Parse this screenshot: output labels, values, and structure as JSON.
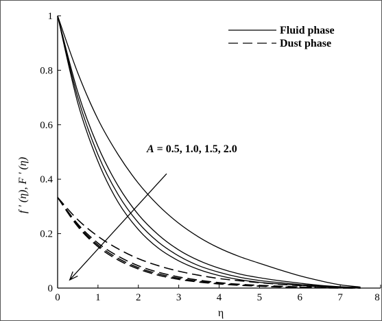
{
  "chart_data": {
    "type": "line",
    "title": "",
    "xlabel": "η",
    "ylabel": "f ' (η), F ' (η)",
    "xlim": [
      0,
      8
    ],
    "ylim": [
      0,
      1
    ],
    "xticks": [
      "0",
      "1",
      "2",
      "3",
      "4",
      "5",
      "6",
      "7",
      "8"
    ],
    "yticks": [
      "0",
      "0.2",
      "0.4",
      "0.6",
      "0.8",
      "1"
    ],
    "grid": false,
    "legend": {
      "position": "top-right",
      "entries": [
        {
          "label": "Fluid phase",
          "style": "solid"
        },
        {
          "label": "Dust phase",
          "style": "dashed"
        }
      ]
    },
    "annotation": {
      "italic": "A",
      "text": " = 0.5, 1.0, 1.5, 2.0",
      "arrow_from": [
        2.7,
        0.42
      ],
      "arrow_to": [
        0.3,
        0.03
      ]
    },
    "series": [
      {
        "style": "solid",
        "x": [
          0,
          0.5,
          1,
          1.5,
          2,
          2.5,
          3,
          3.5,
          4,
          4.5,
          5,
          5.5,
          6,
          6.5,
          7,
          7.5
        ],
        "y": [
          1.0,
          0.79,
          0.62,
          0.49,
          0.385,
          0.303,
          0.238,
          0.187,
          0.147,
          0.116,
          0.091,
          0.067,
          0.045,
          0.027,
          0.012,
          0.004
        ]
      },
      {
        "style": "solid",
        "x": [
          0,
          0.5,
          1,
          1.5,
          2,
          2.5,
          3,
          3.5,
          4,
          4.5,
          5,
          5.5,
          6,
          6.5,
          7,
          7.5
        ],
        "y": [
          1.0,
          0.72,
          0.52,
          0.375,
          0.27,
          0.195,
          0.14,
          0.101,
          0.073,
          0.052,
          0.038,
          0.027,
          0.018,
          0.01,
          0.005,
          0.002
        ]
      },
      {
        "style": "solid",
        "x": [
          0,
          0.5,
          1,
          1.5,
          2,
          2.5,
          3,
          3.5,
          4,
          4.5,
          5,
          5.5,
          6,
          6.5,
          7,
          7.5
        ],
        "y": [
          1.0,
          0.7,
          0.49,
          0.343,
          0.24,
          0.168,
          0.118,
          0.082,
          0.058,
          0.04,
          0.028,
          0.02,
          0.013,
          0.008,
          0.004,
          0.002
        ]
      },
      {
        "style": "solid",
        "x": [
          0,
          0.5,
          1,
          1.5,
          2,
          2.5,
          3,
          3.5,
          4,
          4.5,
          5,
          5.5,
          6,
          6.5,
          7,
          7.5
        ],
        "y": [
          1.0,
          0.68,
          0.465,
          0.315,
          0.215,
          0.146,
          0.1,
          0.068,
          0.046,
          0.031,
          0.021,
          0.015,
          0.01,
          0.006,
          0.003,
          0.001
        ]
      },
      {
        "style": "dashed",
        "x": [
          0,
          0.5,
          1,
          1.5,
          2,
          2.5,
          3,
          3.5,
          4,
          4.5,
          5,
          5.5,
          6,
          6.5,
          7,
          7.5
        ],
        "y": [
          0.333,
          0.251,
          0.19,
          0.144,
          0.108,
          0.082,
          0.062,
          0.047,
          0.035,
          0.027,
          0.02,
          0.014,
          0.009,
          0.005,
          0.002,
          0.001
        ]
      },
      {
        "style": "dashed",
        "x": [
          0,
          0.5,
          1,
          1.5,
          2,
          2.5,
          3,
          3.5,
          4,
          4.5,
          5,
          5.5,
          6,
          6.5,
          7,
          7.5
        ],
        "y": [
          0.333,
          0.235,
          0.165,
          0.117,
          0.082,
          0.058,
          0.041,
          0.029,
          0.02,
          0.014,
          0.01,
          0.007,
          0.004,
          0.002,
          0.001,
          0.0
        ]
      },
      {
        "style": "dashed",
        "x": [
          0,
          0.5,
          1,
          1.5,
          2,
          2.5,
          3,
          3.5,
          4,
          4.5,
          5,
          5.5,
          6,
          6.5,
          7,
          7.5
        ],
        "y": [
          0.333,
          0.23,
          0.158,
          0.109,
          0.075,
          0.052,
          0.036,
          0.025,
          0.017,
          0.012,
          0.008,
          0.005,
          0.003,
          0.002,
          0.001,
          0.0
        ]
      },
      {
        "style": "dashed",
        "x": [
          0,
          0.5,
          1,
          1.5,
          2,
          2.5,
          3,
          3.5,
          4,
          4.5,
          5,
          5.5,
          6,
          6.5,
          7,
          7.5
        ],
        "y": [
          0.333,
          0.226,
          0.152,
          0.103,
          0.07,
          0.047,
          0.032,
          0.022,
          0.015,
          0.01,
          0.007,
          0.004,
          0.003,
          0.001,
          0.0,
          0.0
        ]
      }
    ]
  }
}
